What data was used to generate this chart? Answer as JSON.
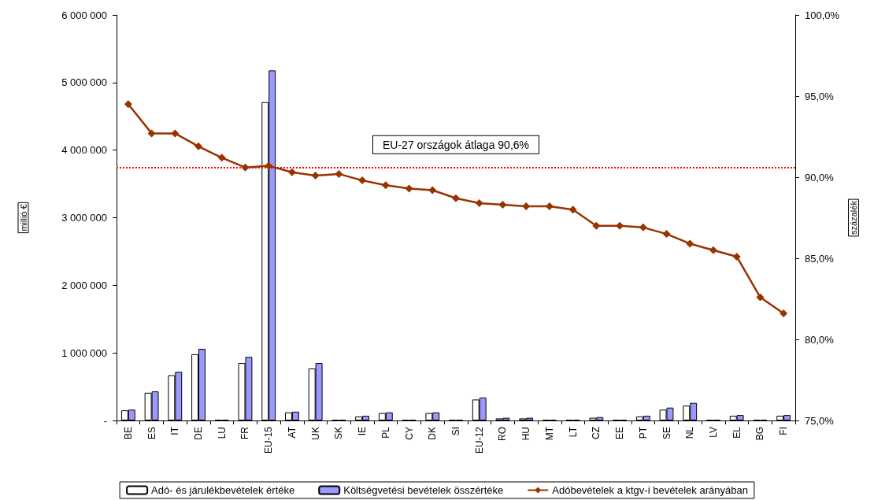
{
  "chart_data": {
    "type": "bar",
    "ylabel": "millió €",
    "y2label": "százalék",
    "categories": [
      "BE",
      "ES",
      "IT",
      "DE",
      "LU",
      "FR",
      "EU-15",
      "AT",
      "UK",
      "SK",
      "IE",
      "PL",
      "CY",
      "DK",
      "SI",
      "EU-12",
      "RO",
      "HU",
      "MT",
      "LT",
      "CZ",
      "EE",
      "PT",
      "SE",
      "NL",
      "LV",
      "EL",
      "BG",
      "FI"
    ],
    "series": [
      {
        "name": "Adó- és járulékbevételek értéke",
        "color": "#ffffff",
        "values": [
          150000,
          410000,
          670000,
          980000,
          10000,
          850000,
          4710000,
          120000,
          770000,
          10000,
          60000,
          110000,
          10000,
          110000,
          10000,
          310000,
          30000,
          30000,
          10000,
          10000,
          40000,
          10000,
          60000,
          160000,
          220000,
          10000,
          70000,
          10000,
          70000
        ]
      },
      {
        "name": "Költségvetési bevételek összértéke",
        "color": "#9999ff",
        "values": [
          160000,
          430000,
          720000,
          1060000,
          10000,
          940000,
          5180000,
          130000,
          850000,
          10000,
          70000,
          120000,
          10000,
          120000,
          10000,
          340000,
          40000,
          40000,
          10000,
          10000,
          50000,
          10000,
          70000,
          190000,
          260000,
          10000,
          80000,
          10000,
          80000
        ]
      },
      {
        "name": "Adóbevételek a ktgv-i bevételek arányában",
        "type": "line",
        "axis": "y2",
        "color": "#993300",
        "values": [
          94.5,
          92.7,
          92.7,
          91.9,
          91.2,
          90.6,
          90.7,
          90.3,
          90.1,
          90.2,
          89.8,
          89.5,
          89.3,
          89.2,
          88.7,
          88.4,
          88.3,
          88.2,
          88.2,
          88.0,
          87.0,
          87.0,
          86.9,
          86.5,
          85.9,
          85.5,
          85.1,
          82.6,
          81.6
        ]
      }
    ],
    "ylim": [
      0,
      6000000
    ],
    "yticks": [
      {
        "value": 0,
        "label": "-"
      },
      {
        "value": 1000000,
        "label": "1 000 000"
      },
      {
        "value": 2000000,
        "label": "2 000 000"
      },
      {
        "value": 3000000,
        "label": "3 000 000"
      },
      {
        "value": 4000000,
        "label": "4 000 000"
      },
      {
        "value": 5000000,
        "label": "5 000 000"
      },
      {
        "value": 6000000,
        "label": "6 000 000"
      }
    ],
    "y2lim": [
      75,
      100
    ],
    "y2ticks": [
      {
        "value": 75,
        "label": "75,0%"
      },
      {
        "value": 80,
        "label": "80,0%"
      },
      {
        "value": 85,
        "label": "85,0%"
      },
      {
        "value": 90,
        "label": "90,0%"
      },
      {
        "value": 95,
        "label": "95,0%"
      },
      {
        "value": 100,
        "label": "100,0%"
      }
    ],
    "ref_lines": [
      {
        "axis": "y2",
        "value": 90.6,
        "label": "EU-27 országok átlaga 90,6%",
        "color": "#ff0000",
        "line_style": "dotted"
      }
    ],
    "marker": "diamond",
    "grid": false,
    "legend": "bottom"
  }
}
